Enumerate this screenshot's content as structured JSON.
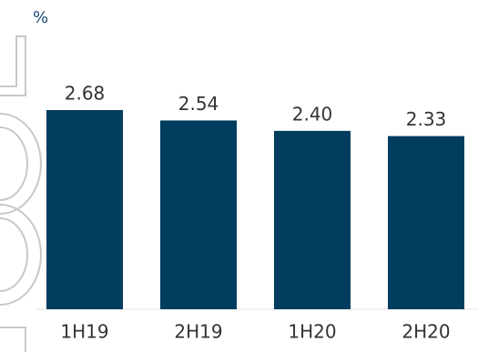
{
  "chart_data": {
    "type": "bar",
    "y_label": "%",
    "categories": [
      "1H19",
      "2H19",
      "1H20",
      "2H20"
    ],
    "values": [
      2.68,
      2.54,
      2.4,
      2.33
    ],
    "value_labels": [
      "2.68",
      "2.54",
      "2.40",
      "2.33"
    ],
    "color": "#003d5f",
    "ylim": [
      0,
      3.5
    ]
  }
}
